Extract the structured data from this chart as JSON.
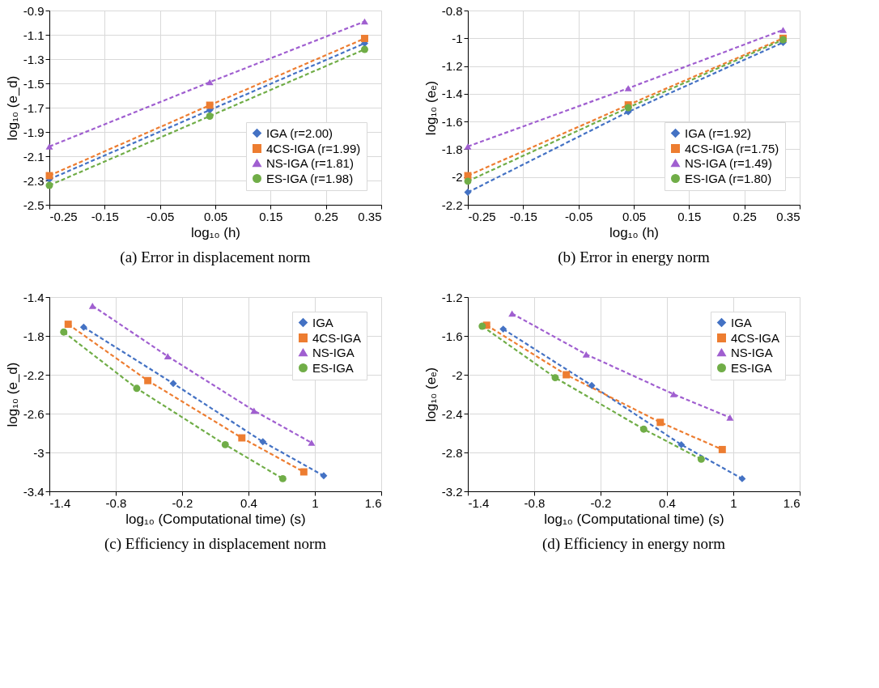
{
  "chart_data": [
    {
      "type": "line",
      "xlabel": "log₁₀ (h)",
      "ylabel": "log₁₀ (e_d)",
      "annotations": [
        "(a)  Error in displacement norm"
      ],
      "xlim": [
        -0.25,
        0.35
      ],
      "xticks": [
        -0.25,
        -0.15,
        -0.05,
        0.05,
        0.15,
        0.25,
        0.35
      ],
      "ylim": [
        -2.5,
        -0.9
      ],
      "yticks": [
        -2.5,
        -2.3,
        -2.1,
        -1.9,
        -1.7,
        -1.5,
        -1.3,
        -1.1,
        -0.9
      ],
      "grid": true,
      "legend": "bottom right",
      "line_style": "dashed",
      "series": [
        {
          "name": "IGA (r=2.00)",
          "color": "#4472c4",
          "marker": "diamond",
          "x": [
            -0.25,
            0.04,
            0.32
          ],
          "values": [
            -2.29,
            -1.72,
            -1.17
          ]
        },
        {
          "name": "4CS-IGA (r=1.99)",
          "color": "#ed7d31",
          "marker": "square",
          "x": [
            -0.25,
            0.04,
            0.32
          ],
          "values": [
            -2.26,
            -1.68,
            -1.13
          ]
        },
        {
          "name": "NS-IGA (r=1.81)",
          "color": "#a05fd0",
          "marker": "triangle",
          "x": [
            -0.25,
            0.04,
            0.32
          ],
          "values": [
            -2.02,
            -1.49,
            -0.99
          ]
        },
        {
          "name": "ES-IGA (r=1.98)",
          "color": "#70ad47",
          "marker": "circle",
          "x": [
            -0.25,
            0.04,
            0.32
          ],
          "values": [
            -2.34,
            -1.77,
            -1.22
          ]
        }
      ]
    },
    {
      "type": "line",
      "xlabel": "log₁₀ (h)",
      "ylabel": "log₁₀ (eₑ)",
      "annotations": [
        "(b)  Error in energy norm"
      ],
      "xlim": [
        -0.25,
        0.35
      ],
      "xticks": [
        -0.25,
        -0.15,
        -0.05,
        0.05,
        0.15,
        0.25,
        0.35
      ],
      "ylim": [
        -2.2,
        -0.8
      ],
      "yticks": [
        -2.2,
        -2,
        -1.8,
        -1.6,
        -1.4,
        -1.2,
        -1,
        -0.8
      ],
      "grid": true,
      "legend": "bottom right",
      "line_style": "dashed",
      "series": [
        {
          "name": "IGA (r=1.92)",
          "color": "#4472c4",
          "marker": "diamond",
          "x": [
            -0.25,
            0.04,
            0.32
          ],
          "values": [
            -2.11,
            -1.53,
            -1.03
          ]
        },
        {
          "name": "4CS-IGA (r=1.75)",
          "color": "#ed7d31",
          "marker": "square",
          "x": [
            -0.25,
            0.04,
            0.32
          ],
          "values": [
            -1.99,
            -1.48,
            -1.0
          ]
        },
        {
          "name": "NS-IGA (r=1.49)",
          "color": "#a05fd0",
          "marker": "triangle",
          "x": [
            -0.25,
            0.04,
            0.32
          ],
          "values": [
            -1.78,
            -1.36,
            -0.94
          ]
        },
        {
          "name": "ES-IGA (r=1.80)",
          "color": "#70ad47",
          "marker": "circle",
          "x": [
            -0.25,
            0.04,
            0.32
          ],
          "values": [
            -2.03,
            -1.5,
            -1.01
          ]
        }
      ]
    },
    {
      "type": "line",
      "xlabel": "log₁₀ (Computational time) (s)",
      "ylabel": "log₁₀ (e_d)",
      "annotations": [
        "(c)  Efficiency in displacement norm"
      ],
      "xlim": [
        -1.4,
        1.6
      ],
      "xticks": [
        -1.4,
        -0.8,
        -0.2,
        0.4,
        1,
        1.6
      ],
      "ylim": [
        -3.4,
        -1.4
      ],
      "yticks": [
        -3.4,
        -3,
        -2.6,
        -2.2,
        -1.8,
        -1.4
      ],
      "grid": true,
      "legend": "top right",
      "line_style": "dashed",
      "series": [
        {
          "name": "IGA",
          "color": "#4472c4",
          "marker": "diamond",
          "x": [
            -1.09,
            -0.28,
            0.53,
            1.08
          ],
          "values": [
            -1.71,
            -2.29,
            -2.89,
            -3.24
          ]
        },
        {
          "name": "4CS-IGA",
          "color": "#ed7d31",
          "marker": "square",
          "x": [
            -1.23,
            -0.51,
            0.34,
            0.9
          ],
          "values": [
            -1.68,
            -2.26,
            -2.85,
            -3.2
          ]
        },
        {
          "name": "NS-IGA",
          "color": "#a05fd0",
          "marker": "triangle",
          "x": [
            -1.01,
            -0.33,
            0.45,
            0.97
          ],
          "values": [
            -1.49,
            -2.01,
            -2.57,
            -2.9
          ]
        },
        {
          "name": "ES-IGA",
          "color": "#70ad47",
          "marker": "circle",
          "x": [
            -1.27,
            -0.61,
            0.19,
            0.71
          ],
          "values": [
            -1.76,
            -2.34,
            -2.92,
            -3.27
          ]
        }
      ]
    },
    {
      "type": "line",
      "xlabel": "log₁₀ (Computational time) (s)",
      "ylabel": "log₁₀ (eₑ)",
      "annotations": [
        "(d)  Efficiency in energy norm"
      ],
      "xlim": [
        -1.4,
        1.6
      ],
      "xticks": [
        -1.4,
        -0.8,
        -0.2,
        0.4,
        1,
        1.6
      ],
      "ylim": [
        -3.2,
        -1.2
      ],
      "yticks": [
        -3.2,
        -2.8,
        -2.4,
        -2,
        -1.6,
        -1.2
      ],
      "grid": true,
      "legend": "top right",
      "line_style": "dashed",
      "series": [
        {
          "name": "IGA",
          "color": "#4472c4",
          "marker": "diamond",
          "x": [
            -1.08,
            -0.28,
            0.53,
            1.08
          ],
          "values": [
            -1.53,
            -2.11,
            -2.72,
            -3.07
          ]
        },
        {
          "name": "4CS-IGA",
          "color": "#ed7d31",
          "marker": "square",
          "x": [
            -1.23,
            -0.51,
            0.34,
            0.9
          ],
          "values": [
            -1.49,
            -2.0,
            -2.49,
            -2.77
          ]
        },
        {
          "name": "NS-IGA",
          "color": "#a05fd0",
          "marker": "triangle",
          "x": [
            -1.0,
            -0.33,
            0.46,
            0.97
          ],
          "values": [
            -1.37,
            -1.79,
            -2.2,
            -2.44
          ]
        },
        {
          "name": "ES-IGA",
          "color": "#70ad47",
          "marker": "circle",
          "x": [
            -1.27,
            -0.61,
            0.19,
            0.71
          ],
          "values": [
            -1.5,
            -2.03,
            -2.56,
            -2.87
          ]
        }
      ]
    }
  ]
}
